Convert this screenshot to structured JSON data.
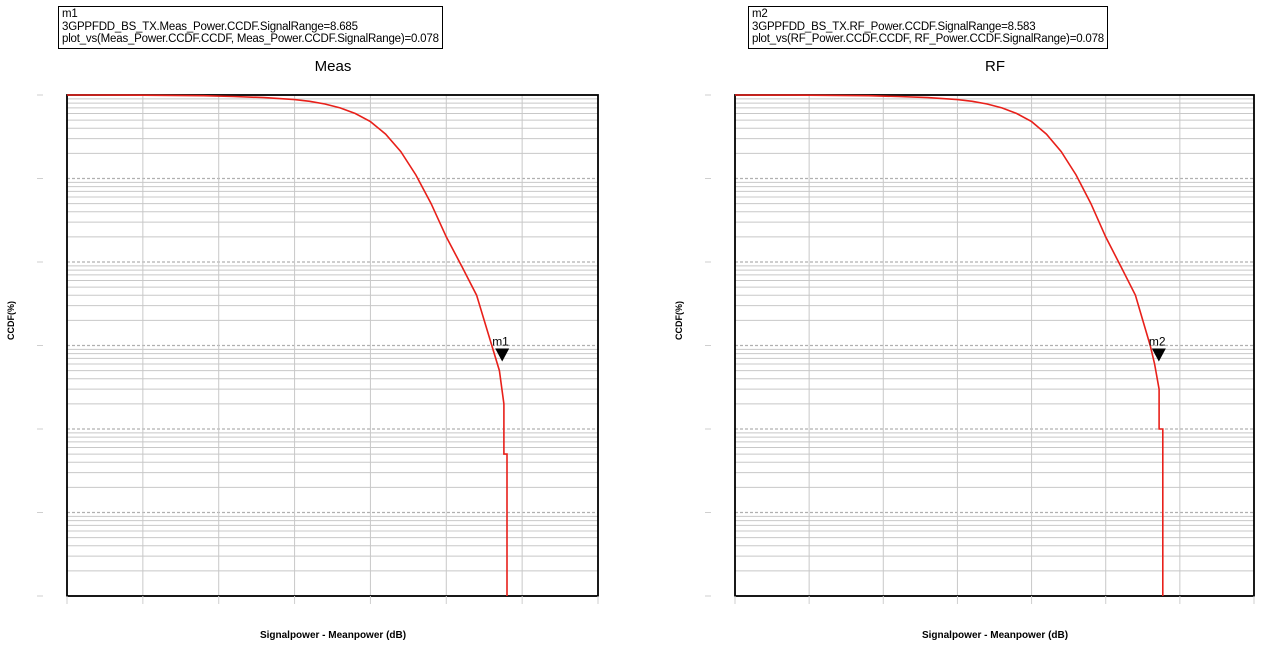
{
  "chart_data": [
    {
      "type": "line",
      "title": "Meas",
      "xlabel": "Signalpower - Meanpower (dB)",
      "ylabel": "CCDF(%)",
      "xlim": [
        -20,
        15
      ],
      "yscale": "log",
      "ylim": [
        0.0001,
        100
      ],
      "grid": true,
      "series": [
        {
          "color": "#e8201a",
          "x": [
            -20,
            -16,
            -13,
            -11,
            -9,
            -7,
            -5,
            -4,
            -3,
            -2,
            -1,
            0,
            1,
            2,
            3,
            4,
            5,
            6,
            7,
            7.5,
            8,
            8.5,
            8.8,
            8.8,
            9.0,
            9.0
          ],
          "y": [
            100,
            99.8,
            99,
            98,
            96,
            93,
            88,
            84,
            78,
            70,
            60,
            48,
            34,
            21,
            11,
            5,
            2,
            0.9,
            0.4,
            0.2,
            0.1,
            0.05,
            0.02,
            0.005,
            0.005,
            0.0001
          ]
        }
      ],
      "marker": {
        "name": "m1",
        "x": 8.685,
        "y": 0.078,
        "lines": [
          "m1",
          "3GPPFDD_BS_TX.Meas_Power.CCDF.SignalRange=8.685",
          "plot_vs(Meas_Power.CCDF.CCDF, Meas_Power.CCDF.SignalRange)=0.078"
        ]
      }
    },
    {
      "type": "line",
      "title": "RF",
      "xlabel": "Signalpower - Meanpower (dB)",
      "ylabel": "CCDF(%)",
      "xlim": [
        -20,
        15
      ],
      "yscale": "log",
      "ylim": [
        0.0001,
        100
      ],
      "grid": true,
      "series": [
        {
          "color": "#e8201a",
          "x": [
            -20,
            -16,
            -13,
            -11,
            -9,
            -7,
            -5,
            -4,
            -3,
            -2,
            -1,
            0,
            1,
            2,
            3,
            4,
            5,
            6,
            7,
            7.5,
            8,
            8.3,
            8.6,
            8.6,
            8.85,
            8.85
          ],
          "y": [
            100,
            99.8,
            99,
            98,
            96,
            93,
            88,
            84,
            78,
            70,
            60,
            48,
            34,
            21,
            11,
            5,
            2,
            0.9,
            0.4,
            0.2,
            0.1,
            0.06,
            0.03,
            0.01,
            0.01,
            0.0001
          ]
        }
      ],
      "marker": {
        "name": "m2",
        "x": 8.583,
        "y": 0.078,
        "lines": [
          "m2",
          "3GPPFDD_BS_TX.RF_Power.CCDF.SignalRange=8.583",
          "plot_vs(RF_Power.CCDF.CCDF, RF_Power.CCDF.SignalRange)=0.078"
        ]
      }
    }
  ]
}
